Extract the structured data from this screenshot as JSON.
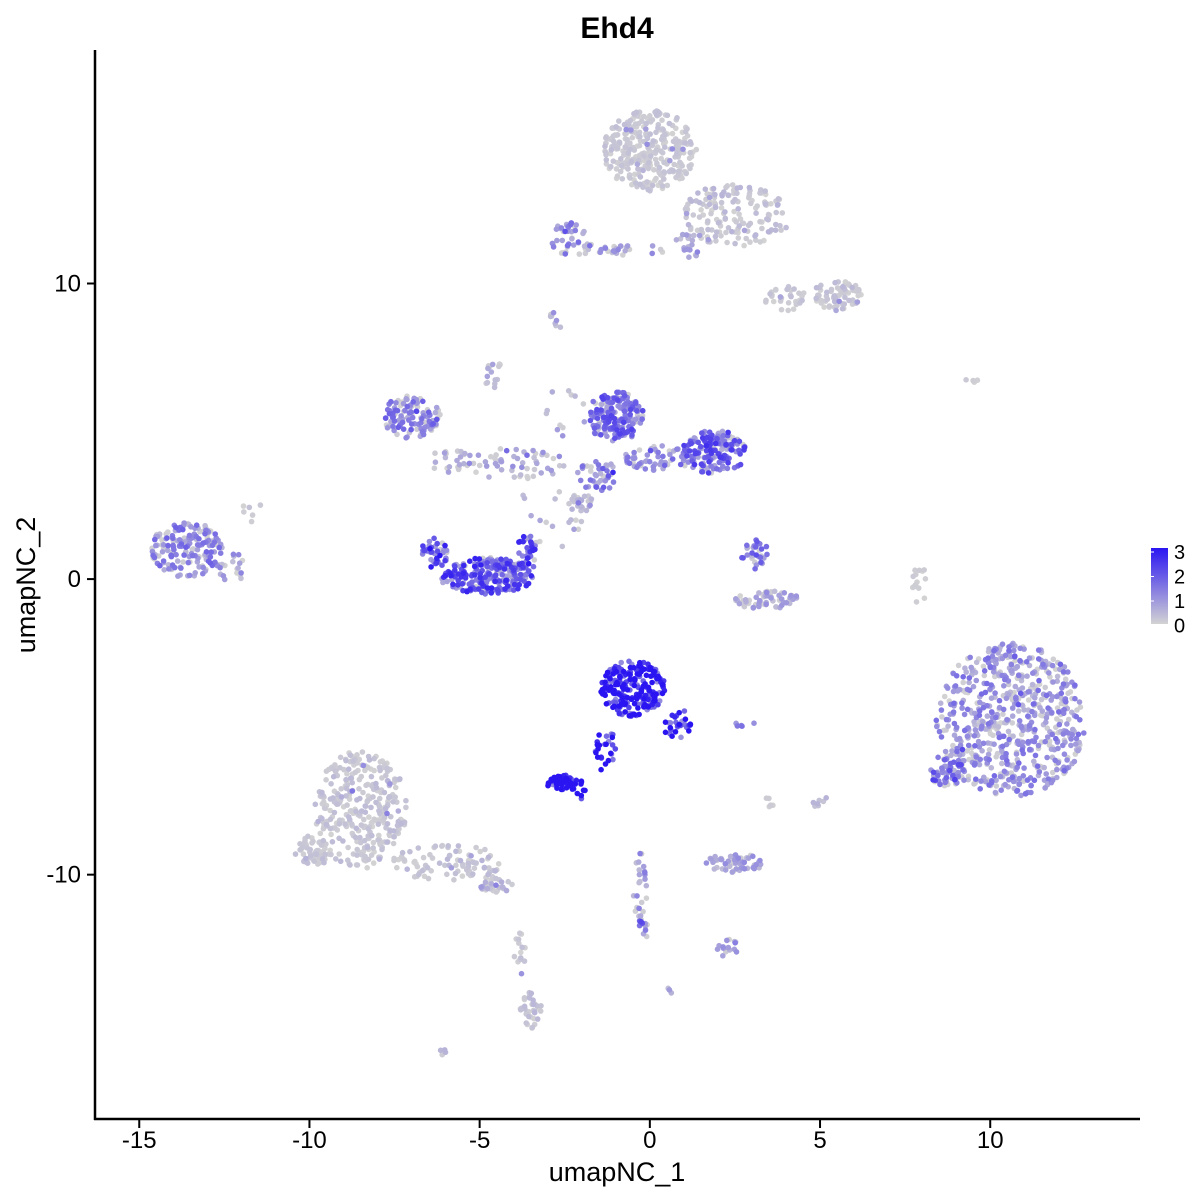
{
  "chart_data": {
    "type": "scatter",
    "title": "Ehd4",
    "xlabel": "umapNC_1",
    "ylabel": "umapNC_2",
    "xlim": [
      -16.3,
      14.4
    ],
    "ylim": [
      -18.3,
      17.9
    ],
    "x_ticks": [
      -15,
      -10,
      -5,
      0,
      5,
      10
    ],
    "y_ticks": [
      -10,
      0,
      10
    ],
    "x_tick_labels": [
      "-15",
      "-10",
      "-5",
      "0",
      "5",
      "10"
    ],
    "y_tick_labels": [
      "-10",
      "0",
      "10"
    ],
    "grid": false,
    "legend": {
      "placement": "right",
      "min": 0,
      "max": 3,
      "labels": [
        "3",
        "2",
        "1",
        "0"
      ],
      "low_color": "#d3d3d3",
      "high_color": "#2a15f2"
    },
    "clusters": [
      {
        "cx": 0.0,
        "cy": 14.5,
        "rx": 1.3,
        "ry": 1.3,
        "n": 320,
        "expr": 0.2
      },
      {
        "cx": 2.5,
        "cy": 12.3,
        "rx": 1.6,
        "ry": 1.0,
        "n": 160,
        "expr": 0.3
      },
      {
        "cx": 5.5,
        "cy": 9.6,
        "rx": 0.7,
        "ry": 0.5,
        "n": 70,
        "expr": 0.25
      },
      {
        "cx": 4.0,
        "cy": 9.5,
        "rx": 0.6,
        "ry": 0.4,
        "n": 30,
        "expr": 0.2
      },
      {
        "cx": -2.3,
        "cy": 11.5,
        "rx": 0.6,
        "ry": 0.6,
        "n": 45,
        "expr": 1.0
      },
      {
        "cx": -0.5,
        "cy": 11.1,
        "rx": 1.0,
        "ry": 0.2,
        "n": 25,
        "expr": 0.8
      },
      {
        "cx": 1.0,
        "cy": 11.3,
        "rx": 0.3,
        "ry": 0.4,
        "n": 12,
        "expr": 0.6
      },
      {
        "cx": -7.0,
        "cy": 5.5,
        "rx": 0.8,
        "ry": 0.7,
        "n": 110,
        "expr": 1.2
      },
      {
        "cx": -1.0,
        "cy": 5.5,
        "rx": 0.8,
        "ry": 0.8,
        "n": 180,
        "expr": 1.4
      },
      {
        "cx": 1.9,
        "cy": 4.3,
        "rx": 0.9,
        "ry": 0.7,
        "n": 160,
        "expr": 1.5
      },
      {
        "cx": 0.3,
        "cy": 4.1,
        "rx": 1.0,
        "ry": 0.4,
        "n": 60,
        "expr": 1.1
      },
      {
        "cx": -1.5,
        "cy": 3.5,
        "rx": 0.6,
        "ry": 0.5,
        "n": 40,
        "expr": 1.2
      },
      {
        "cx": -4.0,
        "cy": 3.9,
        "rx": 1.6,
        "ry": 0.5,
        "n": 55,
        "expr": 0.7
      },
      {
        "cx": -13.6,
        "cy": 1.0,
        "rx": 1.0,
        "ry": 0.9,
        "n": 170,
        "expr": 1.1
      },
      {
        "cx": -12.3,
        "cy": 0.4,
        "rx": 0.4,
        "ry": 0.5,
        "n": 20,
        "expr": 0.8
      },
      {
        "cx": -4.8,
        "cy": 0.1,
        "rx": 1.3,
        "ry": 0.6,
        "n": 220,
        "expr": 1.7
      },
      {
        "cx": -6.3,
        "cy": 0.9,
        "rx": 0.4,
        "ry": 0.5,
        "n": 40,
        "expr": 2.0
      },
      {
        "cx": -3.6,
        "cy": 0.9,
        "rx": 0.3,
        "ry": 0.6,
        "n": 35,
        "expr": 1.8
      },
      {
        "cx": 3.4,
        "cy": -0.7,
        "rx": 1.0,
        "ry": 0.3,
        "n": 60,
        "expr": 0.6
      },
      {
        "cx": 3.1,
        "cy": 0.8,
        "rx": 0.4,
        "ry": 0.5,
        "n": 30,
        "expr": 1.3
      },
      {
        "cx": -0.5,
        "cy": -3.7,
        "rx": 0.9,
        "ry": 0.9,
        "n": 230,
        "expr": 2.7
      },
      {
        "cx": 0.8,
        "cy": -4.9,
        "rx": 0.4,
        "ry": 0.5,
        "n": 30,
        "expr": 2.5
      },
      {
        "cx": -1.3,
        "cy": -5.8,
        "rx": 0.3,
        "ry": 0.7,
        "n": 25,
        "expr": 2.8
      },
      {
        "cx": -2.5,
        "cy": -6.9,
        "rx": 0.5,
        "ry": 0.25,
        "n": 70,
        "expr": 3.0
      },
      {
        "cx": 10.6,
        "cy": -4.8,
        "rx": 2.1,
        "ry": 2.5,
        "n": 650,
        "expr": 1.0
      },
      {
        "cx": 8.7,
        "cy": -6.5,
        "rx": 0.5,
        "ry": 0.5,
        "n": 50,
        "expr": 1.4
      },
      {
        "cx": -8.5,
        "cy": -7.8,
        "rx": 1.3,
        "ry": 1.9,
        "n": 320,
        "expr": 0.25
      },
      {
        "cx": -9.9,
        "cy": -9.2,
        "rx": 0.5,
        "ry": 0.5,
        "n": 60,
        "expr": 0.2
      },
      {
        "cx": -6.0,
        "cy": -9.6,
        "rx": 1.6,
        "ry": 0.6,
        "n": 90,
        "expr": 0.3
      },
      {
        "cx": -4.5,
        "cy": -10.3,
        "rx": 0.5,
        "ry": 0.3,
        "n": 30,
        "expr": 0.4
      },
      {
        "cx": -3.5,
        "cy": -14.6,
        "rx": 0.3,
        "ry": 0.6,
        "n": 35,
        "expr": 0.3
      },
      {
        "cx": -3.8,
        "cy": -12.5,
        "rx": 0.2,
        "ry": 0.9,
        "n": 15,
        "expr": 0.2
      },
      {
        "cx": 2.5,
        "cy": -9.6,
        "rx": 0.8,
        "ry": 0.3,
        "n": 60,
        "expr": 0.7
      },
      {
        "cx": 2.3,
        "cy": -12.5,
        "rx": 0.3,
        "ry": 0.3,
        "n": 15,
        "expr": 0.7
      },
      {
        "cx": -0.3,
        "cy": -10.5,
        "rx": 0.2,
        "ry": 1.2,
        "n": 25,
        "expr": 0.8
      },
      {
        "cx": -0.2,
        "cy": -11.8,
        "rx": 0.2,
        "ry": 0.4,
        "n": 12,
        "expr": 1.4
      },
      {
        "cx": 7.9,
        "cy": -0.2,
        "rx": 0.2,
        "ry": 0.8,
        "n": 15,
        "expr": 0.1
      },
      {
        "cx": -4.6,
        "cy": 7.0,
        "rx": 0.3,
        "ry": 0.5,
        "n": 15,
        "expr": 0.5
      },
      {
        "cx": -2.8,
        "cy": 8.7,
        "rx": 0.2,
        "ry": 0.3,
        "n": 8,
        "expr": 0.6
      },
      {
        "cx": -2.0,
        "cy": 2.6,
        "rx": 0.3,
        "ry": 0.3,
        "n": 25,
        "expr": 0.4
      },
      {
        "cx": 5.0,
        "cy": -7.5,
        "rx": 0.2,
        "ry": 0.3,
        "n": 8,
        "expr": 0.3
      },
      {
        "cx": 3.5,
        "cy": -7.6,
        "rx": 0.2,
        "ry": 0.2,
        "n": 5,
        "expr": 0.3
      },
      {
        "cx": 2.8,
        "cy": -4.9,
        "rx": 0.3,
        "ry": 0.1,
        "n": 6,
        "expr": 1.0
      },
      {
        "cx": 0.6,
        "cy": -13.9,
        "rx": 0.1,
        "ry": 0.1,
        "n": 3,
        "expr": 0.8
      },
      {
        "cx": -6.1,
        "cy": -16.0,
        "rx": 0.1,
        "ry": 0.1,
        "n": 4,
        "expr": 0.5
      },
      {
        "cx": 9.5,
        "cy": 6.7,
        "rx": 0.3,
        "ry": 0.1,
        "n": 4,
        "expr": 0.1
      },
      {
        "cx": -11.6,
        "cy": 2.3,
        "rx": 0.4,
        "ry": 0.4,
        "n": 6,
        "expr": 0.2
      },
      {
        "cx": -2.0,
        "cy": -7.3,
        "rx": 0.2,
        "ry": 0.2,
        "n": 5,
        "expr": 2.9
      },
      {
        "cx": 1.2,
        "cy": 11.1,
        "rx": 0.2,
        "ry": 0.3,
        "n": 6,
        "expr": 0.9
      },
      {
        "cx": -5.9,
        "cy": 4.0,
        "rx": 0.6,
        "ry": 0.4,
        "n": 20,
        "expr": 0.5
      },
      {
        "cx": -3.0,
        "cy": 2.0,
        "rx": 1.0,
        "ry": 1.2,
        "n": 20,
        "expr": 0.5
      },
      {
        "cx": -2.5,
        "cy": 5.6,
        "rx": 0.6,
        "ry": 0.9,
        "n": 12,
        "expr": 0.6
      }
    ]
  }
}
